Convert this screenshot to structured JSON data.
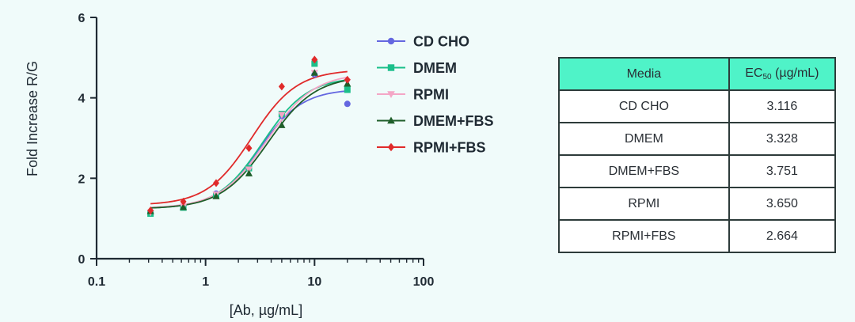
{
  "colors": {
    "background": "#f0fbfa",
    "table_header": "#4ff3c8",
    "axis": "#1f2a33"
  },
  "chart_data": {
    "type": "scatter",
    "xscale": "log",
    "title": "",
    "xlabel": "[Ab, µg/mL]",
    "ylabel": "Fold Increase R/G",
    "xlim": [
      0.1,
      100
    ],
    "ylim": [
      0,
      6
    ],
    "xticks": [
      0.1,
      1,
      10,
      100
    ],
    "xtick_labels": [
      "0.1",
      "1",
      "10",
      "100"
    ],
    "yticks": [
      0,
      2,
      4,
      6
    ],
    "ytick_labels": [
      "0",
      "2",
      "4",
      "6"
    ],
    "legend_position": "top-right",
    "series": [
      {
        "name": "CD CHO",
        "color": "#6467e0",
        "marker": "circle",
        "x": [
          0.3125,
          0.625,
          1.25,
          2.5,
          5,
          10,
          20
        ],
        "y": [
          1.15,
          1.28,
          1.62,
          2.25,
          3.55,
          4.58,
          3.85
        ],
        "fit": {
          "bottom": 1.25,
          "top": 4.22,
          "ec50": 3.116,
          "hill": 2.2
        }
      },
      {
        "name": "DMEM",
        "color": "#1bbf8a",
        "marker": "square",
        "x": [
          0.3125,
          0.625,
          1.25,
          2.5,
          5,
          10,
          20
        ],
        "y": [
          1.12,
          1.27,
          1.58,
          2.25,
          3.6,
          4.85,
          4.2
        ],
        "fit": {
          "bottom": 1.24,
          "top": 4.52,
          "ec50": 3.328,
          "hill": 2.1
        }
      },
      {
        "name": "RPMI",
        "color": "#f4a6c6",
        "marker": "triangle-down",
        "x": [
          0.3125,
          0.625,
          1.25,
          2.5,
          5,
          10,
          20
        ],
        "y": [
          1.15,
          1.3,
          1.6,
          2.22,
          3.58,
          4.62,
          4.4
        ],
        "fit": {
          "bottom": 1.25,
          "top": 4.62,
          "ec50": 3.65,
          "hill": 2.0
        }
      },
      {
        "name": "DMEM+FBS",
        "color": "#1f5e2a",
        "marker": "triangle-up",
        "x": [
          0.3125,
          0.625,
          1.25,
          2.5,
          5,
          10,
          20
        ],
        "y": [
          1.18,
          1.28,
          1.55,
          2.12,
          3.32,
          4.62,
          4.35
        ],
        "fit": {
          "bottom": 1.24,
          "top": 4.55,
          "ec50": 3.751,
          "hill": 2.0
        }
      },
      {
        "name": "RPMI+FBS",
        "color": "#e02a2a",
        "marker": "diamond",
        "x": [
          0.3125,
          0.625,
          1.25,
          2.5,
          5,
          10,
          20
        ],
        "y": [
          1.2,
          1.42,
          1.88,
          2.75,
          4.28,
          4.95,
          4.45
        ],
        "fit": {
          "bottom": 1.33,
          "top": 4.7,
          "ec50": 2.664,
          "hill": 2.1
        }
      }
    ]
  },
  "table": {
    "header_media": "Media",
    "header_ec_prefix": "EC",
    "header_ec_sub": "50",
    "header_ec_suffix": " (µg/mL)",
    "rows": [
      {
        "media": "CD CHO",
        "ec50": "3.116"
      },
      {
        "media": "DMEM",
        "ec50": "3.328"
      },
      {
        "media": "DMEM+FBS",
        "ec50": "3.751"
      },
      {
        "media": "RPMI",
        "ec50": "3.650"
      },
      {
        "media": "RPMI+FBS",
        "ec50": "2.664"
      }
    ]
  }
}
